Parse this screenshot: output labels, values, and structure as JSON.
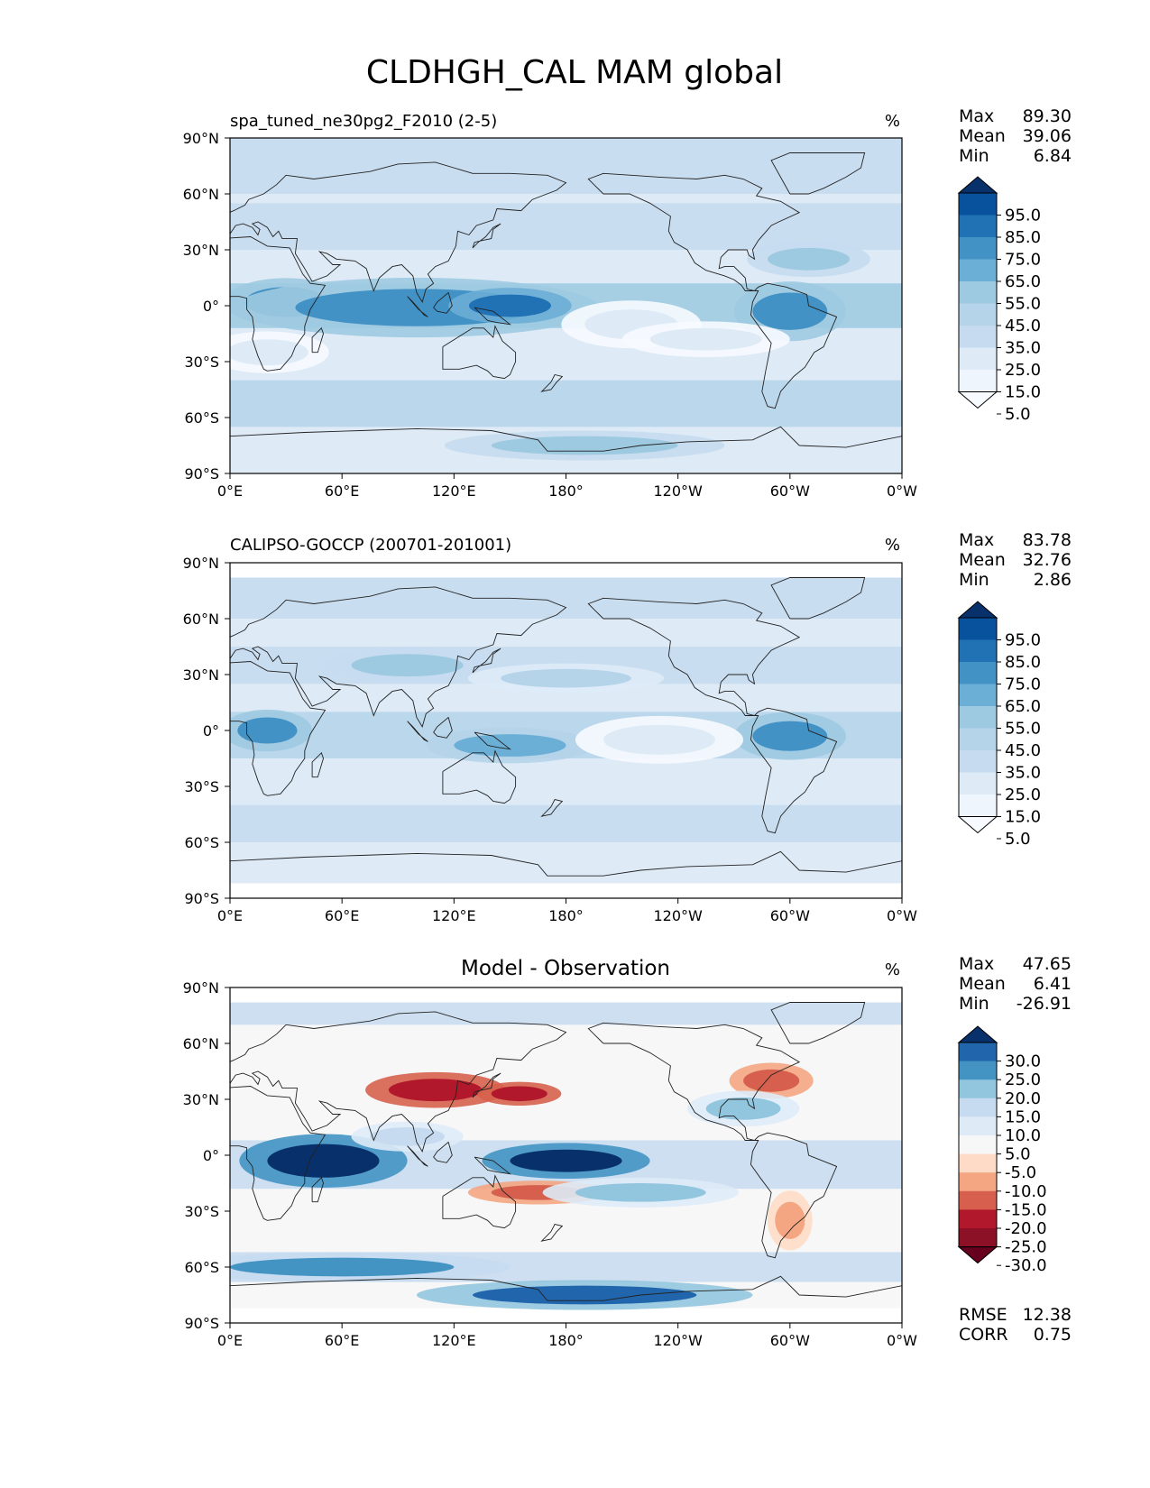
{
  "title": "CLDHGH_CAL MAM global",
  "x_ticks": [
    "0°E",
    "60°E",
    "120°E",
    "180°",
    "120°W",
    "60°W",
    "0°W"
  ],
  "y_ticks": [
    "90°N",
    "60°N",
    "30°N",
    "0°",
    "30°S",
    "60°S",
    "90°S"
  ],
  "chart_data": [
    {
      "type": "heatmap",
      "title": "spa_tuned_ne30pg2_F2010 (2-5)",
      "units": "%",
      "xlabel": "",
      "ylabel": "",
      "xlim": [
        0,
        360
      ],
      "ylim": [
        -90,
        90
      ],
      "stats": [
        {
          "label": "Max",
          "value": "89.30"
        },
        {
          "label": "Mean",
          "value": "39.06"
        },
        {
          "label": "Min",
          "value": "6.84"
        }
      ],
      "colorbar": {
        "levels": [
          "95.0",
          "85.0",
          "75.0",
          "65.0",
          "55.0",
          "45.0",
          "35.0",
          "25.0",
          "15.0",
          "5.0"
        ],
        "colors": [
          "#08306b",
          "#08519c",
          "#2171b5",
          "#4292c6",
          "#6baed6",
          "#9ecae1",
          "#b5d4e9",
          "#c6dbef",
          "#deebf7",
          "#eef5fc",
          "#f7fbff"
        ]
      },
      "features": [
        {
          "lon": 30,
          "lat": 2,
          "rx": 22,
          "ry": 8,
          "level": 3
        },
        {
          "lon": 100,
          "lat": -1,
          "rx": 65,
          "ry": 10,
          "level": 3
        },
        {
          "lon": 150,
          "lat": 0,
          "rx": 22,
          "ry": 6,
          "level": 2
        },
        {
          "lon": 300,
          "lat": -3,
          "rx": 20,
          "ry": 10,
          "level": 3
        },
        {
          "lon": 215,
          "lat": -10,
          "rx": 25,
          "ry": 8,
          "level": 8
        },
        {
          "lon": 255,
          "lat": -18,
          "rx": 30,
          "ry": 6,
          "level": 8
        },
        {
          "lon": 20,
          "lat": -25,
          "rx": 22,
          "ry": 7,
          "level": 8
        },
        {
          "lon": 310,
          "lat": 25,
          "rx": 22,
          "ry": 6,
          "level": 5
        },
        {
          "lon": 190,
          "lat": -75,
          "rx": 50,
          "ry": 5,
          "level": 5
        }
      ]
    },
    {
      "type": "heatmap",
      "title": "CALIPSO-GOCCP (200701-201001)",
      "units": "%",
      "xlabel": "",
      "ylabel": "",
      "xlim": [
        0,
        360
      ],
      "ylim": [
        -90,
        90
      ],
      "stats": [
        {
          "label": "Max",
          "value": "83.78"
        },
        {
          "label": "Mean",
          "value": "32.76"
        },
        {
          "label": "Min",
          "value": "2.86"
        }
      ],
      "colorbar": {
        "levels": [
          "95.0",
          "85.0",
          "75.0",
          "65.0",
          "55.0",
          "45.0",
          "35.0",
          "25.0",
          "15.0",
          "5.0"
        ],
        "colors": [
          "#08306b",
          "#08519c",
          "#2171b5",
          "#4292c6",
          "#6baed6",
          "#9ecae1",
          "#b5d4e9",
          "#c6dbef",
          "#deebf7",
          "#eef5fc",
          "#f7fbff"
        ]
      },
      "features": [
        {
          "lon": 20,
          "lat": 0,
          "rx": 16,
          "ry": 7,
          "level": 3
        },
        {
          "lon": 95,
          "lat": 35,
          "rx": 30,
          "ry": 6,
          "level": 5
        },
        {
          "lon": 150,
          "lat": -8,
          "rx": 30,
          "ry": 6,
          "level": 4
        },
        {
          "lon": 300,
          "lat": -3,
          "rx": 20,
          "ry": 8,
          "level": 3
        },
        {
          "lon": 180,
          "lat": 28,
          "rx": 35,
          "ry": 5,
          "level": 6
        },
        {
          "lon": 230,
          "lat": -5,
          "rx": 30,
          "ry": 8,
          "level": 8
        }
      ]
    },
    {
      "type": "heatmap",
      "title": "Model - Observation",
      "units": "%",
      "xlabel": "",
      "ylabel": "",
      "xlim": [
        0,
        360
      ],
      "ylim": [
        -90,
        90
      ],
      "stats": [
        {
          "label": "Max",
          "value": "47.65"
        },
        {
          "label": "Mean",
          "value": "6.41"
        },
        {
          "label": "Min",
          "value": "-26.91"
        }
      ],
      "extra_stats": [
        {
          "label": "RMSE",
          "value": "12.38"
        },
        {
          "label": "CORR",
          "value": "0.75"
        }
      ],
      "colorbar": {
        "levels": [
          "30.0",
          "25.0",
          "20.0",
          "15.0",
          "10.0",
          "5.0",
          "-5.0",
          "-10.0",
          "-15.0",
          "-20.0",
          "-25.0",
          "-30.0"
        ],
        "colors": [
          "#08306b",
          "#2166ac",
          "#4393c3",
          "#92c5de",
          "#c6dbef",
          "#deebf7",
          "#f7f7f7",
          "#fddbc7",
          "#f4a582",
          "#d6604d",
          "#b2182b",
          "#8c1126",
          "#67001f"
        ]
      },
      "features": [
        {
          "lon": 50,
          "lat": -3,
          "rx": 30,
          "ry": 9,
          "level": 0
        },
        {
          "lon": 180,
          "lat": -3,
          "rx": 30,
          "ry": 6,
          "level": 0
        },
        {
          "lon": 110,
          "lat": 35,
          "rx": 25,
          "ry": 6,
          "level": 10
        },
        {
          "lon": 155,
          "lat": 33,
          "rx": 15,
          "ry": 4,
          "level": 10
        },
        {
          "lon": 165,
          "lat": -20,
          "rx": 25,
          "ry": 4,
          "level": 9
        },
        {
          "lon": 290,
          "lat": 40,
          "rx": 15,
          "ry": 6,
          "level": 9
        },
        {
          "lon": 300,
          "lat": -35,
          "rx": 8,
          "ry": 10,
          "level": 8
        },
        {
          "lon": 190,
          "lat": -75,
          "rx": 60,
          "ry": 5,
          "level": 1
        },
        {
          "lon": 60,
          "lat": -60,
          "rx": 60,
          "ry": 5,
          "level": 2
        },
        {
          "lon": 275,
          "lat": 25,
          "rx": 20,
          "ry": 6,
          "level": 3
        },
        {
          "lon": 95,
          "lat": 10,
          "rx": 20,
          "ry": 5,
          "level": 4
        },
        {
          "lon": 220,
          "lat": -20,
          "rx": 35,
          "ry": 5,
          "level": 3
        }
      ]
    }
  ]
}
